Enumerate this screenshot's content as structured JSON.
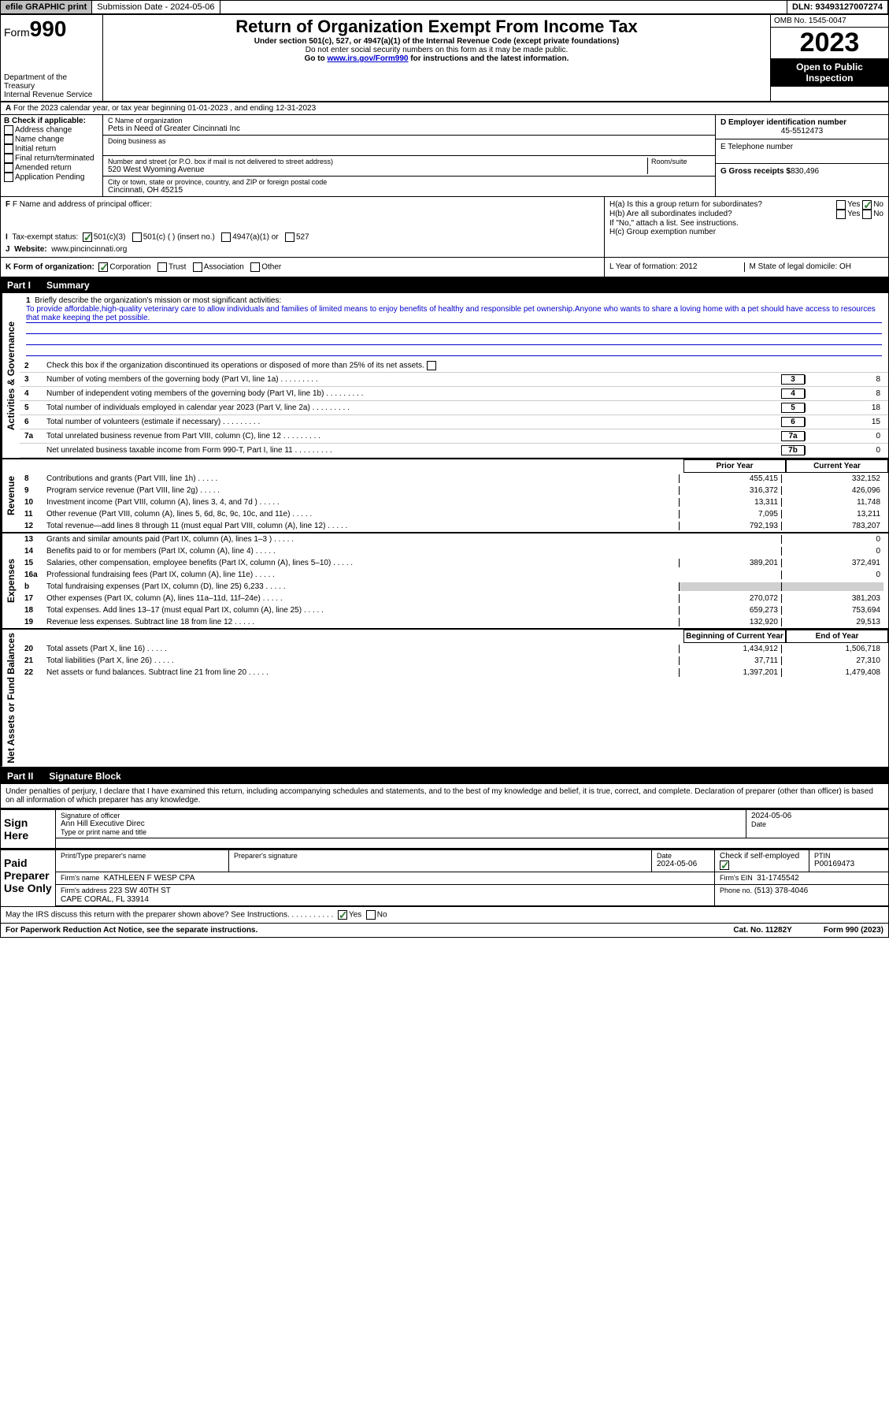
{
  "topbar": {
    "efile": "efile GRAPHIC print",
    "submission": "Submission Date - 2024-05-06",
    "dln": "DLN: 93493127007274"
  },
  "header": {
    "form_prefix": "Form",
    "form_num": "990",
    "dept": "Department of the Treasury",
    "irs": "Internal Revenue Service",
    "title": "Return of Organization Exempt From Income Tax",
    "subtitle": "Under section 501(c), 527, or 4947(a)(1) of the Internal Revenue Code (except private foundations)",
    "ssn_warning": "Do not enter social security numbers on this form as it may be made public.",
    "goto": "Go to ",
    "goto_link": "www.irs.gov/Form990",
    "goto_suffix": " for instructions and the latest information.",
    "omb": "OMB No. 1545-0047",
    "year": "2023",
    "inspect": "Open to Public Inspection"
  },
  "row_a": {
    "a_label": "A",
    "text": "For the 2023 calendar year, or tax year beginning 01-01-2023   , and ending 12-31-2023"
  },
  "box_b": {
    "label": "B Check if applicable:",
    "opts": [
      "Address change",
      "Name change",
      "Initial return",
      "Final return/terminated",
      "Amended return",
      "Application Pending"
    ]
  },
  "box_c": {
    "name_lbl": "C Name of organization",
    "name": "Pets in Need of Greater Cincinnati Inc",
    "dba_lbl": "Doing business as",
    "addr_lbl": "Number and street (or P.O. box if mail is not delivered to street address)",
    "room_lbl": "Room/suite",
    "addr": "520 West Wyoming Avenue",
    "city_lbl": "City or town, state or province, country, and ZIP or foreign postal code",
    "city": "Cincinnati, OH  45215"
  },
  "box_d": {
    "ein_lbl": "D Employer identification number",
    "ein": "45-5512473",
    "phone_lbl": "E Telephone number",
    "gross_lbl": "G Gross receipts $",
    "gross": "830,496"
  },
  "box_f": {
    "lbl": "F Name and address of principal officer:"
  },
  "box_h": {
    "ha": "H(a)  Is this a group return for subordinates?",
    "hb": "H(b)  Are all subordinates included?",
    "note": "If \"No,\" attach a list. See instructions.",
    "hc": "H(c)  Group exemption number",
    "yes": "Yes",
    "no": "No"
  },
  "box_i": {
    "lbl": "I",
    "tax_exempt": "Tax-exempt status:",
    "c501c3": "501(c)(3)",
    "c501c": "501(c) (  ) (insert no.)",
    "c4947": "4947(a)(1) or",
    "c527": "527"
  },
  "box_j": {
    "lbl": "J",
    "website_lbl": "Website:",
    "website": "www.pincincinnati.org"
  },
  "box_k": {
    "lbl": "K Form of organization:",
    "corp": "Corporation",
    "trust": "Trust",
    "assoc": "Association",
    "other": "Other"
  },
  "box_lm": {
    "l": "L Year of formation: 2012",
    "m": "M State of legal domicile: OH"
  },
  "part1": {
    "hdr": "Part I",
    "title": "Summary",
    "sidebar_gov": "Activities & Governance",
    "sidebar_rev": "Revenue",
    "sidebar_exp": "Expenses",
    "sidebar_net": "Net Assets or Fund Balances",
    "line1_lbl": "1",
    "line1": "Briefly describe the organization's mission or most significant activities:",
    "mission": "To provide affordable,high-quality veterinary care to allow individuals and families of limited means to enjoy benefits of healthy and responsible pet ownership.Anyone who wants to share a loving home with a pet should have access to resources that make keeping the pet possible.",
    "line2": "Check this box        if the organization discontinued its operations or disposed of more than 25% of its net assets.",
    "lines_gov": [
      {
        "n": "3",
        "d": "Number of voting members of the governing body (Part VI, line 1a)",
        "box": "3",
        "v": "8"
      },
      {
        "n": "4",
        "d": "Number of independent voting members of the governing body (Part VI, line 1b)",
        "box": "4",
        "v": "8"
      },
      {
        "n": "5",
        "d": "Total number of individuals employed in calendar year 2023 (Part V, line 2a)",
        "box": "5",
        "v": "18"
      },
      {
        "n": "6",
        "d": "Total number of volunteers (estimate if necessary)",
        "box": "6",
        "v": "15"
      },
      {
        "n": "7a",
        "d": "Total unrelated business revenue from Part VIII, column (C), line 12",
        "box": "7a",
        "v": "0"
      },
      {
        "n": "",
        "d": "Net unrelated business taxable income from Form 990-T, Part I, line 11",
        "box": "7b",
        "v": "0"
      }
    ],
    "col_prior": "Prior Year",
    "col_current": "Current Year",
    "lines_rev": [
      {
        "n": "8",
        "d": "Contributions and grants (Part VIII, line 1h)",
        "p": "455,415",
        "c": "332,152"
      },
      {
        "n": "9",
        "d": "Program service revenue (Part VIII, line 2g)",
        "p": "316,372",
        "c": "426,096"
      },
      {
        "n": "10",
        "d": "Investment income (Part VIII, column (A), lines 3, 4, and 7d )",
        "p": "13,311",
        "c": "11,748"
      },
      {
        "n": "11",
        "d": "Other revenue (Part VIII, column (A), lines 5, 6d, 8c, 9c, 10c, and 11e)",
        "p": "7,095",
        "c": "13,211"
      },
      {
        "n": "12",
        "d": "Total revenue—add lines 8 through 11 (must equal Part VIII, column (A), line 12)",
        "p": "792,193",
        "c": "783,207"
      }
    ],
    "lines_exp": [
      {
        "n": "13",
        "d": "Grants and similar amounts paid (Part IX, column (A), lines 1–3 )",
        "p": "",
        "c": "0"
      },
      {
        "n": "14",
        "d": "Benefits paid to or for members (Part IX, column (A), line 4)",
        "p": "",
        "c": "0"
      },
      {
        "n": "15",
        "d": "Salaries, other compensation, employee benefits (Part IX, column (A), lines 5–10)",
        "p": "389,201",
        "c": "372,491"
      },
      {
        "n": "16a",
        "d": "Professional fundraising fees (Part IX, column (A), line 11e)",
        "p": "",
        "c": "0"
      },
      {
        "n": "b",
        "d": "Total fundraising expenses (Part IX, column (D), line 25) 6,233",
        "p": "shade",
        "c": "shade"
      },
      {
        "n": "17",
        "d": "Other expenses (Part IX, column (A), lines 11a–11d, 11f–24e)",
        "p": "270,072",
        "c": "381,203"
      },
      {
        "n": "18",
        "d": "Total expenses. Add lines 13–17 (must equal Part IX, column (A), line 25)",
        "p": "659,273",
        "c": "753,694"
      },
      {
        "n": "19",
        "d": "Revenue less expenses. Subtract line 18 from line 12",
        "p": "132,920",
        "c": "29,513"
      }
    ],
    "col_begin": "Beginning of Current Year",
    "col_end": "End of Year",
    "lines_net": [
      {
        "n": "20",
        "d": "Total assets (Part X, line 16)",
        "p": "1,434,912",
        "c": "1,506,718"
      },
      {
        "n": "21",
        "d": "Total liabilities (Part X, line 26)",
        "p": "37,711",
        "c": "27,310"
      },
      {
        "n": "22",
        "d": "Net assets or fund balances. Subtract line 21 from line 20",
        "p": "1,397,201",
        "c": "1,479,408"
      }
    ]
  },
  "part2": {
    "hdr": "Part II",
    "title": "Signature Block",
    "perjury": "Under penalties of perjury, I declare that I have examined this return, including accompanying schedules and statements, and to the best of my knowledge and belief, it is true, correct, and complete. Declaration of preparer (other than officer) is based on all information of which preparer has any knowledge.",
    "sign_here": "Sign Here",
    "sig_officer": "Signature of officer",
    "sig_name": "Ann Hill Executive Direc",
    "sig_type": "Type or print name and title",
    "date_lbl": "Date",
    "date": "2024-05-06",
    "paid": "Paid Preparer Use Only",
    "prep_name_lbl": "Print/Type preparer's name",
    "prep_sig_lbl": "Preparer's signature",
    "prep_date": "2024-05-06",
    "check_self": "Check         if self-employed",
    "ptin_lbl": "PTIN",
    "ptin": "P00169473",
    "firm_name_lbl": "Firm's name",
    "firm_name": "KATHLEEN F WESP CPA",
    "firm_ein_lbl": "Firm's EIN",
    "firm_ein": "31-1745542",
    "firm_addr_lbl": "Firm's address",
    "firm_addr1": "223 SW 40TH ST",
    "firm_addr2": "CAPE CORAL, FL  33914",
    "phone_lbl": "Phone no.",
    "phone": "(513) 378-4046",
    "discuss": "May the IRS discuss this return with the preparer shown above? See Instructions.",
    "yes": "Yes",
    "no": "No"
  },
  "footer": {
    "paperwork": "For Paperwork Reduction Act Notice, see the separate instructions.",
    "cat": "Cat. No. 11282Y",
    "form": "Form 990 (2023)"
  }
}
